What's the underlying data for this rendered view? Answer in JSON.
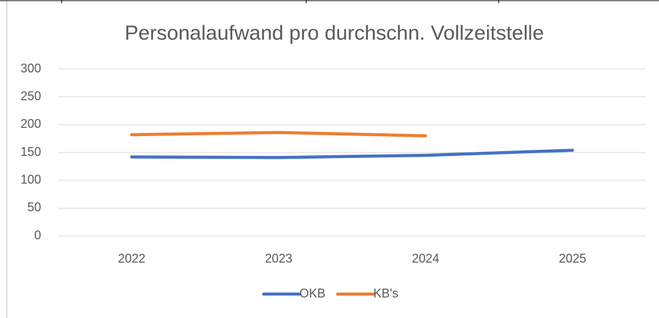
{
  "chart_data": {
    "type": "line",
    "title": "Personalaufwand pro durchschn. Vollzeitstelle",
    "categories": [
      "2022",
      "2023",
      "2024",
      "2025"
    ],
    "series": [
      {
        "name": "OKB",
        "color": "#4472c4",
        "values": [
          142,
          141,
          145,
          154
        ]
      },
      {
        "name": "KB's",
        "color": "#ed7d31",
        "values": [
          182,
          186,
          180,
          null
        ]
      }
    ],
    "ylim": [
      0,
      300
    ],
    "yticks": [
      0,
      50,
      100,
      150,
      200,
      250,
      300
    ],
    "grid": true,
    "legend": "bottom"
  }
}
